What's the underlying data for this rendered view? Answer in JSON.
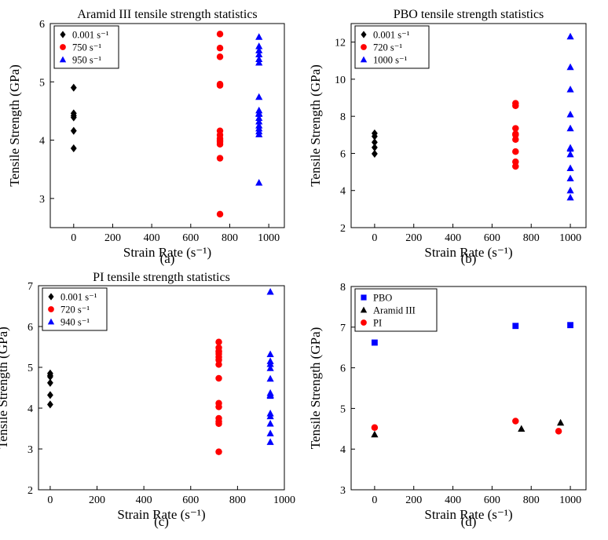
{
  "chart_data": [
    {
      "type": "scatter",
      "title": "Aramid III tensile strength statistics",
      "xlabel": "Strain Rate (s⁻¹)",
      "ylabel": "Tensile Strength (GPa)",
      "panel_label": "(a)",
      "xlim": [
        -120,
        1080
      ],
      "ylim": [
        2.5,
        6
      ],
      "xticks": [
        0,
        200,
        400,
        600,
        800,
        1000
      ],
      "yticks": [
        3,
        4,
        5,
        6
      ],
      "legend_position": "top-left",
      "series": [
        {
          "name": "0.001 s⁻¹",
          "marker": "diamond",
          "color": "#000000",
          "x": [
            0,
            0,
            0,
            0,
            0,
            0
          ],
          "y": [
            4.9,
            4.46,
            4.39,
            4.16,
            3.86,
            4.42
          ]
        },
        {
          "name": "750 s⁻¹",
          "marker": "circle",
          "color": "#ff0000",
          "x": [
            750,
            750,
            750,
            750,
            750,
            750,
            750,
            750,
            750,
            750,
            750,
            750,
            750
          ],
          "y": [
            5.82,
            5.58,
            5.43,
            4.96,
            4.94,
            4.16,
            4.09,
            4.03,
            3.97,
            3.93,
            3.69,
            2.73,
            4.0
          ]
        },
        {
          "name": "950 s⁻¹",
          "marker": "triangle",
          "color": "#0000ff",
          "x": [
            950,
            950,
            950,
            950,
            950,
            950,
            950,
            950,
            950,
            950,
            950,
            950,
            950,
            950,
            950,
            950,
            950
          ],
          "y": [
            5.77,
            5.61,
            5.54,
            5.47,
            5.39,
            5.33,
            4.74,
            4.51,
            4.45,
            4.38,
            4.32,
            4.25,
            4.2,
            4.15,
            4.1,
            3.27,
            4.46
          ]
        }
      ]
    },
    {
      "type": "scatter",
      "title": "PBO tensile strength statistics",
      "xlabel": "Strain Rate (s⁻¹)",
      "ylabel": "Tensile Strength (GPa)",
      "panel_label": "(b)",
      "xlim": [
        -120,
        1080
      ],
      "ylim": [
        2,
        13
      ],
      "xticks": [
        0,
        200,
        400,
        600,
        800,
        1000
      ],
      "yticks": [
        2,
        4,
        6,
        8,
        10,
        12
      ],
      "legend_position": "top-left",
      "series": [
        {
          "name": "0.001 s⁻¹",
          "marker": "diamond",
          "color": "#000000",
          "x": [
            0,
            0,
            0,
            0,
            0
          ],
          "y": [
            7.08,
            6.92,
            6.6,
            6.32,
            5.98
          ]
        },
        {
          "name": "720 s⁻¹",
          "marker": "circle",
          "color": "#ff0000",
          "x": [
            720,
            720,
            720,
            720,
            720,
            720,
            720,
            720,
            720
          ],
          "y": [
            8.7,
            8.57,
            7.35,
            7.05,
            6.75,
            6.1,
            5.55,
            5.3,
            7.0
          ]
        },
        {
          "name": "1000 s⁻¹",
          "marker": "triangle",
          "color": "#0000ff",
          "x": [
            1000,
            1000,
            1000,
            1000,
            1000,
            1000,
            1000,
            1000,
            1000,
            1000,
            1000,
            1000
          ],
          "y": [
            12.3,
            10.65,
            9.45,
            8.1,
            7.35,
            6.3,
            5.95,
            5.2,
            4.65,
            4.0,
            3.62,
            6.25
          ]
        }
      ]
    },
    {
      "type": "scatter",
      "title": "PI tensile strength statistics",
      "xlabel": "Strain Rate (s⁻¹)",
      "ylabel": "Tensile Strength (GPa)",
      "panel_label": "(c)",
      "xlim": [
        -50,
        1000
      ],
      "ylim": [
        2,
        7
      ],
      "xticks": [
        0,
        200,
        400,
        600,
        800,
        1000
      ],
      "yticks": [
        2,
        3,
        4,
        5,
        6,
        7
      ],
      "legend_position": "top-left",
      "series": [
        {
          "name": "0.001 s⁻¹",
          "marker": "diamond",
          "color": "#000000",
          "x": [
            0,
            0,
            0,
            0,
            0,
            0
          ],
          "y": [
            4.85,
            4.77,
            4.62,
            4.32,
            4.09,
            4.8
          ]
        },
        {
          "name": "720 s⁻¹",
          "marker": "circle",
          "color": "#ff0000",
          "x": [
            720,
            720,
            720,
            720,
            720,
            720,
            720,
            720,
            720,
            720,
            720,
            720,
            720,
            720,
            720
          ],
          "y": [
            5.62,
            5.48,
            5.38,
            5.33,
            5.25,
            5.18,
            5.07,
            4.73,
            4.12,
            4.03,
            3.75,
            3.67,
            3.62,
            2.93,
            5.4
          ]
        },
        {
          "name": "940 s⁻¹",
          "marker": "triangle",
          "color": "#0000ff",
          "x": [
            940,
            940,
            940,
            940,
            940,
            940,
            940,
            940,
            940,
            940,
            940,
            940,
            940,
            940
          ],
          "y": [
            6.85,
            5.32,
            5.15,
            4.98,
            4.72,
            4.37,
            4.3,
            3.87,
            3.8,
            3.62,
            3.38,
            3.17,
            5.08,
            4.32
          ]
        }
      ]
    },
    {
      "type": "scatter",
      "title": "",
      "xlabel": "Strain Rate (s⁻¹)",
      "ylabel": "Tensile Strength (GPa)",
      "panel_label": "(d)",
      "xlim": [
        -120,
        1080
      ],
      "ylim": [
        3,
        8
      ],
      "xticks": [
        0,
        200,
        400,
        600,
        800,
        1000
      ],
      "yticks": [
        3,
        4,
        5,
        6,
        7,
        8
      ],
      "legend_position": "top-left",
      "series": [
        {
          "name": "PBO",
          "marker": "square",
          "color": "#0000ff",
          "x": [
            0,
            720,
            1000
          ],
          "y": [
            6.62,
            7.03,
            7.05
          ]
        },
        {
          "name": "Aramid III",
          "marker": "triangle",
          "color": "#000000",
          "x": [
            0,
            750,
            950
          ],
          "y": [
            4.36,
            4.5,
            4.65
          ]
        },
        {
          "name": "PI",
          "marker": "circle",
          "color": "#ff0000",
          "x": [
            0,
            720,
            940
          ],
          "y": [
            4.53,
            4.69,
            4.44
          ]
        }
      ]
    }
  ]
}
